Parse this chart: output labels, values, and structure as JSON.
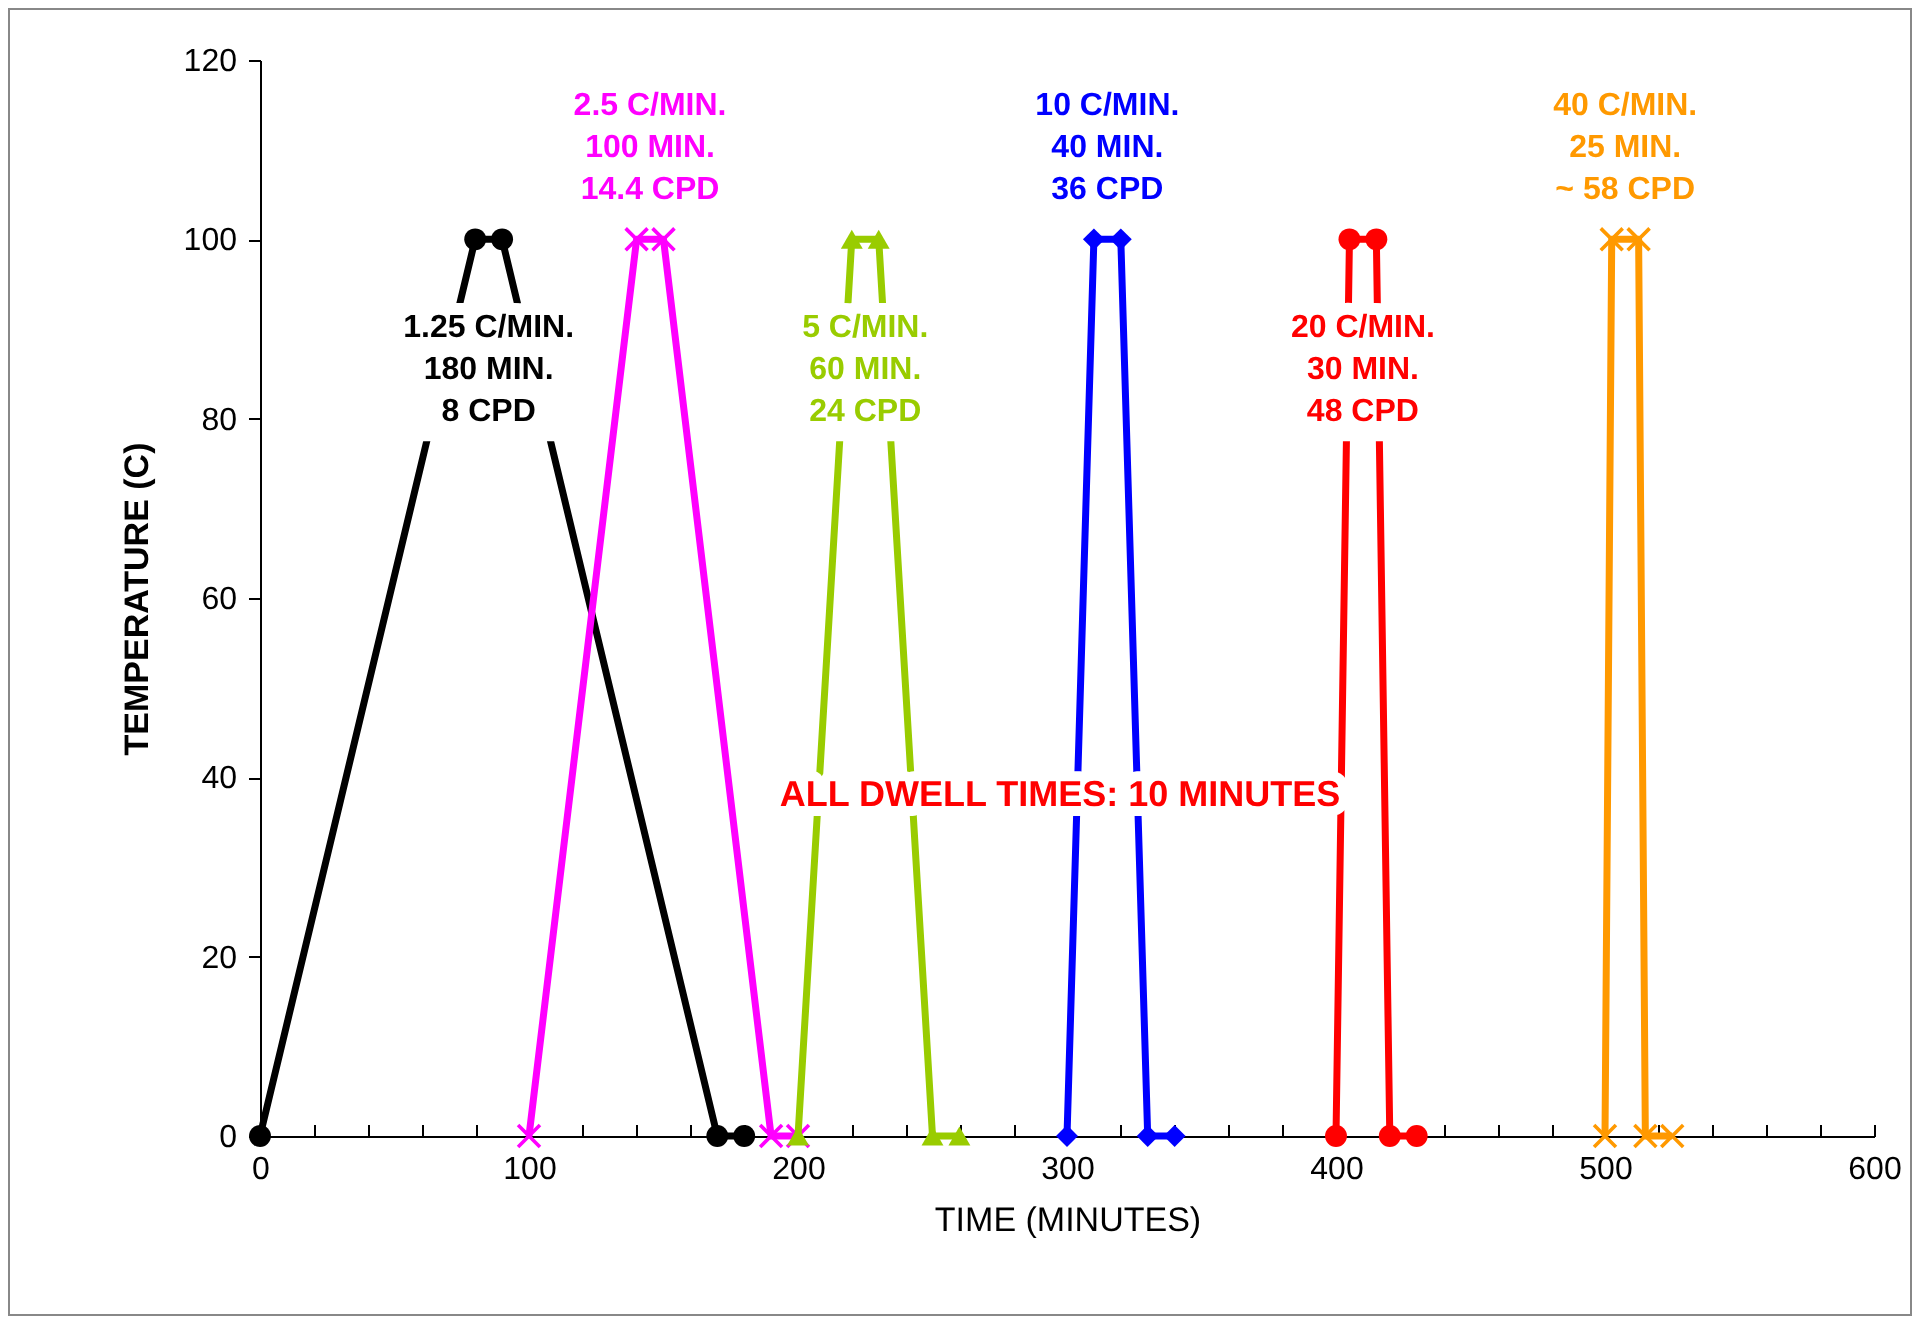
{
  "chart_data": {
    "type": "line",
    "xlabel": "TIME (MINUTES)",
    "ylabel": "TEMPERATURE (C)",
    "xlim": [
      0,
      600
    ],
    "ylim": [
      0,
      120
    ],
    "xticks": [
      0,
      {
        "value": 20,
        "label": null
      },
      {
        "value": 40,
        "label": null
      },
      {
        "value": 60,
        "label": null
      },
      {
        "value": 80,
        "label": null
      },
      100,
      {
        "value": 120,
        "label": null
      },
      {
        "value": 140,
        "label": null
      },
      {
        "value": 160,
        "label": null
      },
      {
        "value": 180,
        "label": null
      },
      200,
      {
        "value": 220,
        "label": null
      },
      {
        "value": 240,
        "label": null
      },
      {
        "value": 260,
        "label": null
      },
      {
        "value": 280,
        "label": null
      },
      300,
      {
        "value": 320,
        "label": null
      },
      {
        "value": 340,
        "label": null
      },
      {
        "value": 360,
        "label": null
      },
      {
        "value": 380,
        "label": null
      },
      400,
      {
        "value": 420,
        "label": null
      },
      {
        "value": 440,
        "label": null
      },
      {
        "value": 460,
        "label": null
      },
      {
        "value": 480,
        "label": null
      },
      500,
      {
        "value": 520,
        "label": null
      },
      {
        "value": 540,
        "label": null
      },
      {
        "value": 560,
        "label": null
      },
      {
        "value": 580,
        "label": null
      },
      600
    ],
    "yticks": [
      0,
      20,
      40,
      60,
      80,
      100,
      120
    ],
    "line_style": "solid",
    "series": [
      {
        "name": "1.25 C/MIN.\n180 MIN.\n8 CPD",
        "color": "#000000",
        "marker": "circle",
        "x": [
          0,
          80,
          90,
          170,
          180
        ],
        "values": [
          0,
          100,
          100,
          0,
          0
        ]
      },
      {
        "name": "2.5 C/MIN.\n100 MIN.\n14.4 CPD",
        "color": "#ff00ff",
        "marker": "cross",
        "x": [
          100,
          140,
          150,
          190,
          200
        ],
        "values": [
          0,
          100,
          100,
          0,
          0
        ]
      },
      {
        "name": "5 C/MIN.\n60 MIN.\n24 CPD",
        "color": "#99cc00",
        "marker": "triangle",
        "x": [
          200,
          220,
          230,
          250,
          260
        ],
        "values": [
          0,
          100,
          100,
          0,
          0
        ]
      },
      {
        "name": "10 C/MIN.\n40 MIN.\n36 CPD",
        "color": "#0000ff",
        "marker": "diamond",
        "x": [
          300,
          310,
          320,
          330,
          340
        ],
        "values": [
          0,
          100,
          100,
          0,
          0
        ]
      },
      {
        "name": "20 C/MIN.\n30 MIN.\n48 CPD",
        "color": "#ff0000",
        "marker": "circle",
        "x": [
          400,
          405,
          415,
          420,
          430
        ],
        "values": [
          0,
          100,
          100,
          0,
          0
        ]
      },
      {
        "name": "40 C/MIN.\n25 MIN.\n~  58 CPD",
        "color": "#ff9900",
        "marker": "cross",
        "x": [
          500,
          502.5,
          512.5,
          515,
          525
        ],
        "values": [
          0,
          100,
          100,
          0,
          0
        ]
      }
    ],
    "annotations": [
      "ALL DWELL TIMES: 10 MINUTES"
    ]
  }
}
